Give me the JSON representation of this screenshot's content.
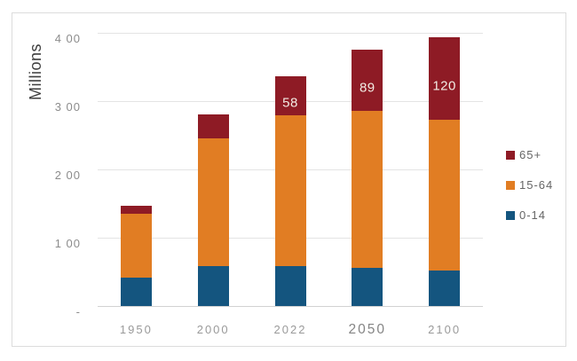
{
  "chart_data": {
    "type": "bar",
    "stacked": true,
    "ylabel": "Millions",
    "categories": [
      "1950",
      "2000",
      "2022",
      "2050",
      "2100"
    ],
    "emphasized_category": "2050",
    "series": [
      {
        "name": "0-14",
        "color": "#14557f",
        "values": [
          41,
          59,
          58,
          56,
          52
        ],
        "labels": [
          "",
          "",
          "",
          "",
          ""
        ]
      },
      {
        "name": "15-64",
        "color": "#e17d23",
        "values": [
          94,
          187,
          221,
          230,
          221
        ],
        "labels": [
          "",
          "",
          "",
          "",
          ""
        ]
      },
      {
        "name": "65+",
        "color": "#8e1b25",
        "values": [
          12,
          35,
          58,
          89,
          120
        ],
        "labels": [
          "",
          "",
          "58",
          "89",
          "120"
        ]
      }
    ],
    "ylim": [
      0,
      400
    ],
    "yticks": [
      {
        "value": 400,
        "label": "4 00"
      },
      {
        "value": 300,
        "label": "3 00"
      },
      {
        "value": 200,
        "label": "2 00"
      },
      {
        "value": 100,
        "label": "1 00"
      },
      {
        "value": 0,
        "label": "-"
      }
    ],
    "legend": {
      "position": "right",
      "order": [
        "65+",
        "15-64",
        "0-14"
      ]
    },
    "grid": true,
    "data_label_color": "#f2ece4"
  }
}
